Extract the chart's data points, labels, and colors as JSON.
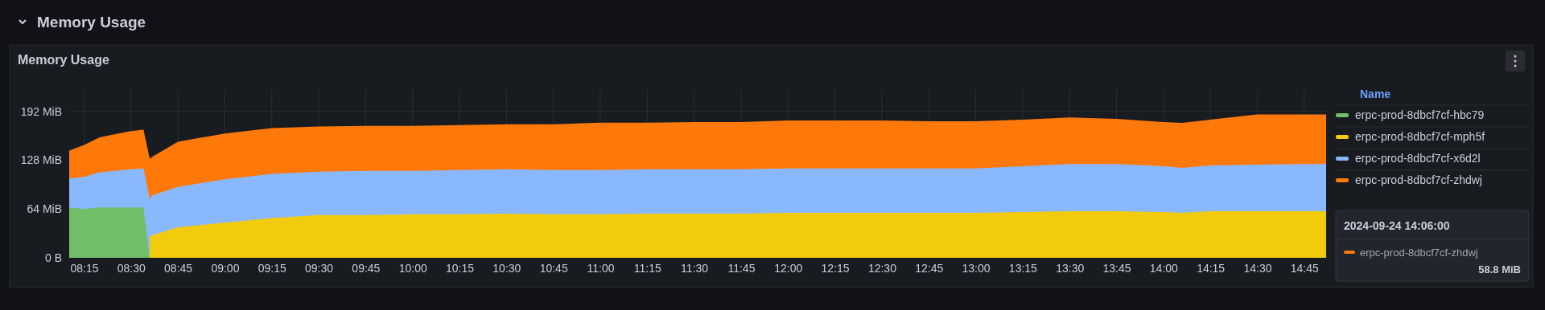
{
  "chart_data": {
    "type": "area",
    "stacked": true,
    "subtitle": "Memory Usage",
    "title": "Memory Usage",
    "legend_title": "Name",
    "legend": "right",
    "grid": true,
    "x": [
      "2024-09-24T08:10",
      "2024-09-24T08:15",
      "2024-09-24T08:20",
      "2024-09-24T08:25",
      "2024-09-24T08:30",
      "2024-09-24T08:34",
      "2024-09-24T08:36",
      "2024-09-24T08:37",
      "2024-09-24T08:45",
      "2024-09-24T09:00",
      "2024-09-24T09:15",
      "2024-09-24T09:30",
      "2024-09-24T09:45",
      "2024-09-24T10:00",
      "2024-09-24T10:15",
      "2024-09-24T10:30",
      "2024-09-24T10:45",
      "2024-09-24T11:00",
      "2024-09-24T11:15",
      "2024-09-24T11:30",
      "2024-09-24T11:45",
      "2024-09-24T12:00",
      "2024-09-24T12:15",
      "2024-09-24T12:30",
      "2024-09-24T12:45",
      "2024-09-24T13:00",
      "2024-09-24T13:15",
      "2024-09-24T13:30",
      "2024-09-24T13:45",
      "2024-09-24T14:00",
      "2024-09-24T14:06",
      "2024-09-24T14:15",
      "2024-09-24T14:30",
      "2024-09-24T14:45",
      "2024-09-24T14:52"
    ],
    "series": [
      {
        "name": "erpc-prod-8dbcf7cf-hbc79",
        "color": "#73bf69",
        "values": [
          66,
          64,
          66,
          66,
          66,
          66,
          0,
          null,
          null,
          null,
          null,
          null,
          null,
          null,
          null,
          null,
          null,
          null,
          null,
          null,
          null,
          null,
          null,
          null,
          null,
          null,
          null,
          null,
          null,
          null,
          null,
          null,
          null,
          null,
          null
        ]
      },
      {
        "name": "erpc-prod-8dbcf7cf-mph5f",
        "color": "#f2cc0c",
        "values": [
          null,
          null,
          null,
          null,
          null,
          null,
          28,
          30,
          40,
          46,
          52,
          56,
          56,
          57,
          57,
          58,
          57,
          57,
          58,
          58,
          58,
          59,
          59,
          59,
          59,
          59,
          60,
          61,
          61,
          60,
          59,
          61,
          61,
          61,
          61
        ]
      },
      {
        "name": "erpc-prod-8dbcf7cf-x6d2l",
        "color": "#8ab8ff",
        "values": [
          38,
          42,
          46,
          48,
          50,
          51,
          50,
          52,
          53,
          57,
          58,
          57,
          58,
          57,
          58,
          58,
          58,
          58,
          58,
          58,
          58,
          58,
          58,
          58,
          58,
          58,
          60,
          62,
          62,
          60,
          59,
          60,
          61,
          62,
          62
        ]
      },
      {
        "name": "erpc-prod-8dbcf7cf-zhdwj",
        "color": "#ff780a",
        "values": [
          36,
          42,
          46,
          48,
          50,
          51,
          52,
          51,
          59,
          60,
          60,
          59,
          59,
          59,
          59,
          59,
          60,
          62,
          61,
          62,
          62,
          63,
          63,
          63,
          62,
          62,
          61,
          61,
          59,
          58,
          58.8,
          60,
          66,
          65,
          65
        ]
      }
    ],
    "xlim": [
      "2024-09-24T08:10",
      "2024-09-24T14:52"
    ],
    "xticks": [
      {
        "value": "2024-09-24T08:15",
        "label": "08:15"
      },
      {
        "value": "2024-09-24T08:30",
        "label": "08:30"
      },
      {
        "value": "2024-09-24T08:45",
        "label": "08:45"
      },
      {
        "value": "2024-09-24T09:00",
        "label": "09:00"
      },
      {
        "value": "2024-09-24T09:15",
        "label": "09:15"
      },
      {
        "value": "2024-09-24T09:30",
        "label": "09:30"
      },
      {
        "value": "2024-09-24T09:45",
        "label": "09:45"
      },
      {
        "value": "2024-09-24T10:00",
        "label": "10:00"
      },
      {
        "value": "2024-09-24T10:15",
        "label": "10:15"
      },
      {
        "value": "2024-09-24T10:30",
        "label": "10:30"
      },
      {
        "value": "2024-09-24T10:45",
        "label": "10:45"
      },
      {
        "value": "2024-09-24T11:00",
        "label": "11:00"
      },
      {
        "value": "2024-09-24T11:15",
        "label": "11:15"
      },
      {
        "value": "2024-09-24T11:30",
        "label": "11:30"
      },
      {
        "value": "2024-09-24T11:45",
        "label": "11:45"
      },
      {
        "value": "2024-09-24T12:00",
        "label": "12:00"
      },
      {
        "value": "2024-09-24T12:15",
        "label": "12:15"
      },
      {
        "value": "2024-09-24T12:30",
        "label": "12:30"
      },
      {
        "value": "2024-09-24T12:45",
        "label": "12:45"
      },
      {
        "value": "2024-09-24T13:00",
        "label": "13:00"
      },
      {
        "value": "2024-09-24T13:15",
        "label": "13:15"
      },
      {
        "value": "2024-09-24T13:30",
        "label": "13:30"
      },
      {
        "value": "2024-09-24T13:45",
        "label": "13:45"
      },
      {
        "value": "2024-09-24T14:00",
        "label": "14:00"
      },
      {
        "value": "2024-09-24T14:15",
        "label": "14:15"
      },
      {
        "value": "2024-09-24T14:30",
        "label": "14:30"
      },
      {
        "value": "2024-09-24T14:45",
        "label": "14:45"
      }
    ],
    "ylim": [
      0,
      220
    ],
    "yticks": [
      {
        "value": 0,
        "label": "0 B"
      },
      {
        "value": 64,
        "label": "64 MiB"
      },
      {
        "value": 128,
        "label": "128 MiB"
      },
      {
        "value": 192,
        "label": "192 MiB"
      }
    ],
    "annotations": [
      "2024-09-24 14:06:00",
      "erpc-prod-8dbcf7cf-zhdwj",
      "58.8 MiB"
    ]
  }
}
